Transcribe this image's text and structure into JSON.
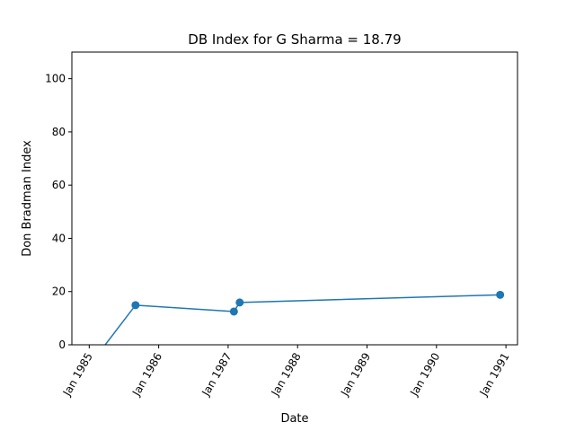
{
  "chart_data": {
    "type": "line",
    "title": "DB Index for G Sharma = 18.79",
    "xlabel": "Date",
    "ylabel": "Don Bradman Index",
    "x": [
      "1985-02",
      "1985-09",
      "1987-02",
      "1987-03",
      "1990-12"
    ],
    "values": [
      -5,
      14.9,
      12.5,
      15.9,
      18.79
    ],
    "color": "#1f77b4",
    "xlim": [
      "1984-10",
      "1991-03"
    ],
    "xticks": [
      {
        "value": "1985-01",
        "label": "Jan 1985"
      },
      {
        "value": "1986-01",
        "label": "Jan 1986"
      },
      {
        "value": "1987-01",
        "label": "Jan 1987"
      },
      {
        "value": "1988-01",
        "label": "Jan 1988"
      },
      {
        "value": "1989-01",
        "label": "Jan 1989"
      },
      {
        "value": "1990-01",
        "label": "Jan 1990"
      },
      {
        "value": "1991-01",
        "label": "Jan 1991"
      }
    ],
    "ylim": [
      0,
      110
    ],
    "yticks": [
      0,
      20,
      40,
      60,
      80,
      100
    ]
  }
}
